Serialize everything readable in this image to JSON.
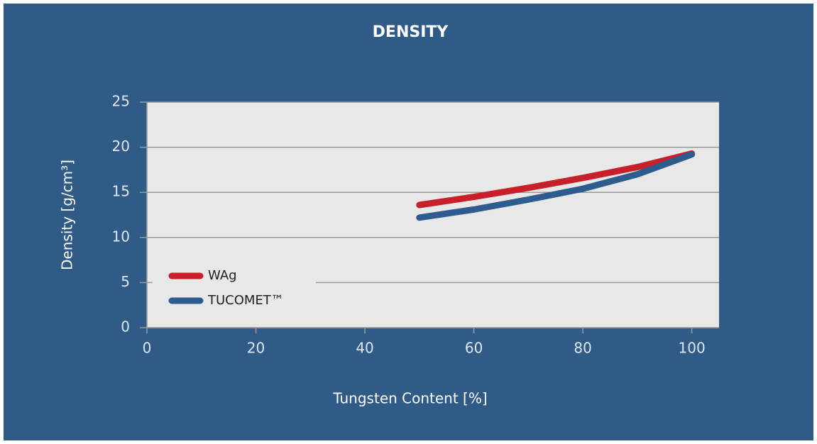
{
  "chart_data": {
    "type": "line",
    "title": "DENSITY",
    "x_label": "Tungsten Content [%]",
    "y_label": "Density [g/cm³]",
    "x": [
      50,
      60,
      70,
      80,
      90,
      100
    ],
    "series": [
      {
        "name": "WAg",
        "color": "#c8202a",
        "values": [
          13.6,
          14.5,
          15.5,
          16.6,
          17.8,
          19.3
        ]
      },
      {
        "name": "TUCOMET™",
        "color": "#2e5c8e",
        "values": [
          12.2,
          13.1,
          14.2,
          15.4,
          17.0,
          19.2
        ]
      }
    ],
    "xlim": [
      0,
      105
    ],
    "xticks": [
      0,
      20,
      40,
      60,
      80,
      100
    ],
    "ylim": [
      0,
      25
    ],
    "yticks": [
      0,
      5,
      10,
      15,
      20,
      25
    ],
    "grid": true,
    "legend": "lower left"
  }
}
